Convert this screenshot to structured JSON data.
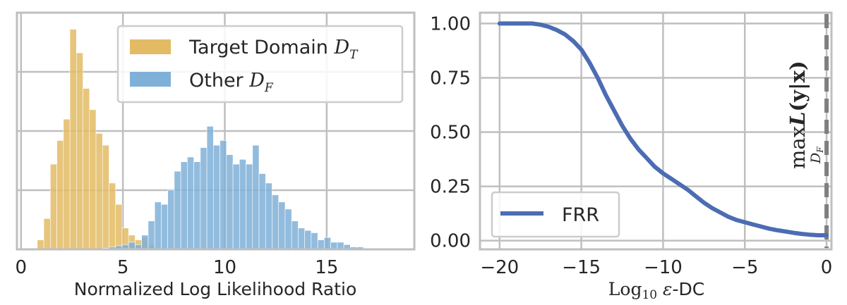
{
  "chart_data": [
    {
      "type": "bar",
      "subtype": "histogram",
      "xlabel": "Normalized Log Likelihood Ratio",
      "xticks": [
        0,
        5,
        10,
        15
      ],
      "xlim": [
        -0.2,
        19.3
      ],
      "ylim": [
        0,
        1.0
      ],
      "yticks_labels": "none",
      "grid": true,
      "legend_position": "top-right",
      "bin_width": 0.32,
      "series": [
        {
          "name": "Target Domain",
          "name_math": "D",
          "name_sub": "T",
          "color": "#e3bb64",
          "bin_starts": [
            0.8,
            1.12,
            1.44,
            1.76,
            2.08,
            2.4,
            2.72,
            3.04,
            3.36,
            3.68,
            4.0,
            4.32,
            4.64,
            4.96,
            5.28,
            5.6,
            5.92,
            6.24
          ],
          "values": [
            0.04,
            0.13,
            0.36,
            0.46,
            0.55,
            0.93,
            0.83,
            0.68,
            0.59,
            0.49,
            0.44,
            0.28,
            0.19,
            0.09,
            0.06,
            0.04,
            0.05,
            0.02
          ]
        },
        {
          "name": "Other",
          "name_math": "D",
          "name_sub": "F",
          "color": "#7fb0d8",
          "bin_starts": [
            4.0,
            4.32,
            4.64,
            4.96,
            5.28,
            5.6,
            5.92,
            6.24,
            6.56,
            6.88,
            7.2,
            7.52,
            7.84,
            8.16,
            8.48,
            8.8,
            9.12,
            9.44,
            9.76,
            10.08,
            10.4,
            10.72,
            11.04,
            11.36,
            11.68,
            12.0,
            12.32,
            12.64,
            12.96,
            13.28,
            13.6,
            13.92,
            14.24,
            14.56,
            14.88,
            15.2,
            15.52,
            15.84,
            16.16,
            16.48,
            16.8
          ],
          "values": [
            0.005,
            0.01,
            0.015,
            0.02,
            0.03,
            0.02,
            0.06,
            0.12,
            0.2,
            0.19,
            0.25,
            0.33,
            0.37,
            0.39,
            0.37,
            0.43,
            0.52,
            0.44,
            0.46,
            0.4,
            0.36,
            0.38,
            0.36,
            0.44,
            0.32,
            0.28,
            0.23,
            0.2,
            0.17,
            0.12,
            0.09,
            0.08,
            0.07,
            0.04,
            0.05,
            0.03,
            0.03,
            0.02,
            0.01,
            0.01,
            0.005
          ]
        }
      ]
    },
    {
      "type": "line",
      "xlabel_prefix": "Log",
      "xlabel_sub": "10",
      "xlabel_eps": "ε",
      "xlabel_suffix": "-DC",
      "xticks": [
        -20,
        -15,
        -10,
        -5,
        0
      ],
      "xticklabels": [
        "−20",
        "−15",
        "−10",
        "−5",
        "0"
      ],
      "yticks": [
        0.0,
        0.25,
        0.5,
        0.75,
        1.0
      ],
      "yticklabels": [
        "0.00",
        "0.25",
        "0.50",
        "0.75",
        "1.00"
      ],
      "xlim": [
        -21.2,
        0.3
      ],
      "ylim": [
        -0.04,
        1.05
      ],
      "grid": true,
      "legend_position": "bottom-left",
      "series": [
        {
          "name": "FRR",
          "color": "#4c6cb3",
          "x": [
            -20,
            -19,
            -18,
            -17.5,
            -17,
            -16.5,
            -16,
            -15.5,
            -15,
            -14.5,
            -14,
            -13.5,
            -13,
            -12.5,
            -12,
            -11.5,
            -11,
            -10.5,
            -10,
            -9.5,
            -9,
            -8.5,
            -8,
            -7.5,
            -7,
            -6.5,
            -6,
            -5.5,
            -5,
            -4.5,
            -4,
            -3.5,
            -3,
            -2.5,
            -2,
            -1.5,
            -1,
            -0.5,
            0
          ],
          "y": [
            1.0,
            1.0,
            1.0,
            0.995,
            0.985,
            0.97,
            0.95,
            0.92,
            0.88,
            0.82,
            0.75,
            0.67,
            0.6,
            0.53,
            0.47,
            0.42,
            0.38,
            0.34,
            0.31,
            0.285,
            0.26,
            0.235,
            0.205,
            0.175,
            0.15,
            0.13,
            0.11,
            0.095,
            0.085,
            0.075,
            0.065,
            0.055,
            0.048,
            0.042,
            0.036,
            0.031,
            0.027,
            0.025,
            0.025
          ]
        }
      ],
      "vline": {
        "x": 0,
        "style": "dashed",
        "color": "#7f7f7f"
      },
      "annotation": {
        "text_max": "max",
        "text_L": "L",
        "text_rest": "(y|x)",
        "text_sub_D": "D",
        "text_sub_F": "F"
      }
    }
  ]
}
